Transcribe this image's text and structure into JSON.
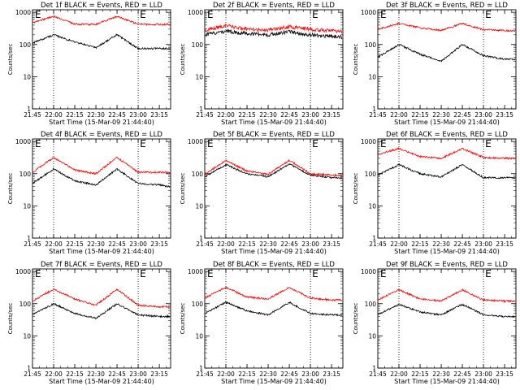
{
  "chart_data": [
    {
      "type": "line",
      "title": "Det 1f BLACK = Events, RED = LLD",
      "xlabel": "Start Time (15-Mar-09 21:44:40)",
      "ylabel": "Counts/sec",
      "yscale": "log",
      "ylim": [
        1,
        1200
      ],
      "xlim": [
        "21:45",
        "23:23"
      ],
      "x_ticks": [
        "21:45",
        "22:00",
        "22:15",
        "22:30",
        "22:45",
        "23:00",
        "23:15"
      ],
      "y_ticks": [
        "1",
        "10",
        "100",
        "1000"
      ],
      "event_markers": [
        "E",
        "E"
      ],
      "vlines": [
        "22:00",
        "23:00"
      ],
      "series": [
        {
          "name": "BLACK = Events",
          "color": "#000000",
          "x": [
            "21:45",
            "22:00",
            "22:15",
            "22:30",
            "22:45",
            "23:00",
            "23:15",
            "23:22"
          ],
          "y": [
            110,
            200,
            120,
            80,
            200,
            75,
            75,
            75
          ]
        },
        {
          "name": "RED = LLD",
          "color": "#ff0000",
          "x": [
            "21:45",
            "22:00",
            "22:15",
            "22:30",
            "22:45",
            "23:00",
            "23:15",
            "23:22"
          ],
          "y": [
            480,
            750,
            430,
            420,
            750,
            420,
            420,
            420
          ]
        }
      ]
    },
    {
      "type": "line",
      "title": "Det 2f BLACK = Events, RED = LLD",
      "xlabel": "Start Time (15-Mar-09 21:44:40)",
      "ylabel": "Counts/sec",
      "yscale": "log",
      "ylim": [
        1,
        1200
      ],
      "xlim": [
        "21:45",
        "23:23"
      ],
      "x_ticks": [
        "21:45",
        "22:00",
        "22:15",
        "22:30",
        "22:45",
        "23:00",
        "23:15"
      ],
      "y_ticks": [
        "1",
        "10",
        "100",
        "1000"
      ],
      "event_markers": [
        "E",
        "E"
      ],
      "vlines": [
        "22:00",
        "23:00"
      ],
      "series": [
        {
          "name": "BLACK = Events",
          "color": "#000000",
          "x": [
            "21:45",
            "22:00",
            "22:15",
            "22:30",
            "22:45",
            "23:00",
            "23:15",
            "23:22"
          ],
          "y": [
            200,
            260,
            220,
            200,
            250,
            200,
            180,
            170
          ]
        },
        {
          "name": "RED = LLD",
          "color": "#ff0000",
          "x": [
            "21:45",
            "22:00",
            "22:15",
            "22:30",
            "22:45",
            "23:00",
            "23:15",
            "23:22"
          ],
          "y": [
            280,
            380,
            300,
            280,
            360,
            290,
            270,
            260
          ]
        }
      ]
    },
    {
      "type": "line",
      "title": "Det 3f BLACK = Events, RED = LLD",
      "xlabel": "Start Time (15-Mar-09 21:44:40)",
      "ylabel": "Counts/sec",
      "yscale": "log",
      "ylim": [
        1,
        1200
      ],
      "xlim": [
        "21:45",
        "23:23"
      ],
      "x_ticks": [
        "21:45",
        "22:00",
        "22:15",
        "22:30",
        "22:45",
        "23:00",
        "23:15"
      ],
      "y_ticks": [
        "1",
        "10",
        "100",
        "1000"
      ],
      "event_markers": [
        "E",
        "E"
      ],
      "vlines": [
        "22:00",
        "23:00"
      ],
      "series": [
        {
          "name": "BLACK = Events",
          "color": "#000000",
          "x": [
            "21:45",
            "22:00",
            "22:15",
            "22:30",
            "22:45",
            "23:00",
            "23:15",
            "23:22"
          ],
          "y": [
            40,
            100,
            50,
            30,
            100,
            45,
            35,
            35
          ]
        },
        {
          "name": "RED = LLD",
          "color": "#ff0000",
          "x": [
            "21:45",
            "22:00",
            "22:15",
            "22:30",
            "22:45",
            "23:00",
            "23:15",
            "23:22"
          ],
          "y": [
            300,
            450,
            330,
            270,
            450,
            290,
            270,
            270
          ]
        }
      ]
    },
    {
      "type": "line",
      "title": "Det 4f BLACK = Events, RED = LLD",
      "xlabel": "Start Time (15-Mar-09 21:44:40)",
      "ylabel": "Counts/sec",
      "yscale": "log",
      "ylim": [
        1,
        1200
      ],
      "xlim": [
        "21:45",
        "23:23"
      ],
      "x_ticks": [
        "21:45",
        "22:00",
        "22:15",
        "22:30",
        "22:45",
        "23:00",
        "23:15"
      ],
      "y_ticks": [
        "1",
        "10",
        "100",
        "1000"
      ],
      "event_markers": [
        "E",
        "E"
      ],
      "vlines": [
        "22:00",
        "23:00"
      ],
      "series": [
        {
          "name": "BLACK = Events",
          "color": "#000000",
          "x": [
            "21:45",
            "22:00",
            "22:15",
            "22:30",
            "22:45",
            "23:00",
            "23:15",
            "23:22"
          ],
          "y": [
            50,
            140,
            60,
            45,
            140,
            50,
            45,
            40
          ]
        },
        {
          "name": "RED = LLD",
          "color": "#ff0000",
          "x": [
            "21:45",
            "22:00",
            "22:15",
            "22:30",
            "22:45",
            "23:00",
            "23:15",
            "23:22"
          ],
          "y": [
            110,
            320,
            130,
            100,
            320,
            110,
            110,
            110
          ]
        }
      ]
    },
    {
      "type": "line",
      "title": "Det 5f BLACK = Events, RED = LLD",
      "xlabel": "Start Time (15-Mar-09 21:44:40)",
      "ylabel": "Counts/sec",
      "yscale": "log",
      "ylim": [
        1,
        1200
      ],
      "xlim": [
        "21:45",
        "23:23"
      ],
      "x_ticks": [
        "21:45",
        "22:00",
        "22:15",
        "22:30",
        "22:45",
        "23:00",
        "23:15"
      ],
      "y_ticks": [
        "1",
        "10",
        "100",
        "1000"
      ],
      "event_markers": [
        "E",
        "E"
      ],
      "vlines": [
        "22:00",
        "23:00"
      ],
      "series": [
        {
          "name": "BLACK = Events",
          "color": "#000000",
          "x": [
            "21:45",
            "22:00",
            "22:15",
            "22:30",
            "22:45",
            "23:00",
            "23:15",
            "23:22"
          ],
          "y": [
            80,
            190,
            100,
            80,
            200,
            90,
            75,
            75
          ]
        },
        {
          "name": "RED = LLD",
          "color": "#ff0000",
          "x": [
            "21:45",
            "22:00",
            "22:15",
            "22:30",
            "22:45",
            "23:00",
            "23:15",
            "23:22"
          ],
          "y": [
            95,
            260,
            120,
            95,
            260,
            100,
            90,
            90
          ]
        }
      ]
    },
    {
      "type": "line",
      "title": "Det 6f BLACK = Events, RED = LLD",
      "xlabel": "Start Time (15-Mar-09 21:44:40)",
      "ylabel": "Counts/sec",
      "yscale": "log",
      "ylim": [
        1,
        1200
      ],
      "xlim": [
        "21:45",
        "23:23"
      ],
      "x_ticks": [
        "21:45",
        "22:00",
        "22:15",
        "22:30",
        "22:45",
        "23:00",
        "23:15"
      ],
      "y_ticks": [
        "1",
        "10",
        "100",
        "1000"
      ],
      "event_markers": [
        "E",
        "E"
      ],
      "vlines": [
        "22:00",
        "23:00"
      ],
      "series": [
        {
          "name": "BLACK = Events",
          "color": "#000000",
          "x": [
            "21:45",
            "22:00",
            "22:15",
            "22:30",
            "22:45",
            "23:00",
            "23:15",
            "23:22"
          ],
          "y": [
            90,
            190,
            100,
            80,
            190,
            75,
            75,
            75
          ]
        },
        {
          "name": "RED = LLD",
          "color": "#ff0000",
          "x": [
            "21:45",
            "22:00",
            "22:15",
            "22:30",
            "22:45",
            "23:00",
            "23:15",
            "23:22"
          ],
          "y": [
            400,
            600,
            340,
            300,
            600,
            320,
            300,
            300
          ]
        }
      ]
    },
    {
      "type": "line",
      "title": "Det 7f BLACK = Events, RED = LLD",
      "xlabel": "Start Time (15-Mar-09 21:44:40)",
      "ylabel": "Counts/sec",
      "yscale": "log",
      "ylim": [
        1,
        1200
      ],
      "xlim": [
        "21:45",
        "23:23"
      ],
      "x_ticks": [
        "21:45",
        "22:00",
        "22:15",
        "22:30",
        "22:45",
        "23:00",
        "23:15"
      ],
      "y_ticks": [
        "1",
        "10",
        "100",
        "1000"
      ],
      "event_markers": [
        "E",
        "E"
      ],
      "vlines": [
        "22:00",
        "23:00"
      ],
      "series": [
        {
          "name": "BLACK = Events",
          "color": "#000000",
          "x": [
            "21:45",
            "22:00",
            "22:15",
            "22:30",
            "22:45",
            "23:00",
            "23:15",
            "23:22"
          ],
          "y": [
            45,
            100,
            50,
            35,
            100,
            45,
            40,
            40
          ]
        },
        {
          "name": "RED = LLD",
          "color": "#ff0000",
          "x": [
            "21:45",
            "22:00",
            "22:15",
            "22:30",
            "22:45",
            "23:00",
            "23:15",
            "23:22"
          ],
          "y": [
            120,
            280,
            140,
            90,
            280,
            90,
            80,
            80
          ]
        }
      ]
    },
    {
      "type": "line",
      "title": "Det 8f BLACK = Events, RED = LLD",
      "xlabel": "Start Time (15-Mar-09 21:44:40)",
      "ylabel": "Counts/sec",
      "yscale": "log",
      "ylim": [
        1,
        1200
      ],
      "xlim": [
        "21:45",
        "23:23"
      ],
      "x_ticks": [
        "21:45",
        "22:00",
        "22:15",
        "22:30",
        "22:45",
        "23:00",
        "23:15"
      ],
      "y_ticks": [
        "1",
        "10",
        "100",
        "1000"
      ],
      "event_markers": [
        "E",
        "E"
      ],
      "vlines": [
        "22:00",
        "23:00"
      ],
      "series": [
        {
          "name": "BLACK = Events",
          "color": "#000000",
          "x": [
            "21:45",
            "22:00",
            "22:15",
            "22:30",
            "22:45",
            "23:00",
            "23:15",
            "23:22"
          ],
          "y": [
            50,
            110,
            60,
            45,
            110,
            50,
            45,
            45
          ]
        },
        {
          "name": "RED = LLD",
          "color": "#ff0000",
          "x": [
            "21:45",
            "22:00",
            "22:15",
            "22:30",
            "22:45",
            "23:00",
            "23:15",
            "23:22"
          ],
          "y": [
            150,
            320,
            160,
            140,
            320,
            150,
            130,
            130
          ]
        }
      ]
    },
    {
      "type": "line",
      "title": "Det 9f BLACK = Events, RED = LLD",
      "xlabel": "Start Time (15-Mar-09 21:44:40)",
      "ylabel": "Counts/sec",
      "yscale": "log",
      "ylim": [
        1,
        1200
      ],
      "xlim": [
        "21:45",
        "23:23"
      ],
      "x_ticks": [
        "21:45",
        "22:00",
        "22:15",
        "22:30",
        "22:45",
        "23:00",
        "23:15"
      ],
      "y_ticks": [
        "1",
        "10",
        "100",
        "1000"
      ],
      "event_markers": [
        "E",
        "E"
      ],
      "vlines": [
        "22:00",
        "23:00"
      ],
      "series": [
        {
          "name": "BLACK = Events",
          "color": "#000000",
          "x": [
            "21:45",
            "22:00",
            "22:15",
            "22:30",
            "22:45",
            "23:00",
            "23:15",
            "23:22"
          ],
          "y": [
            45,
            95,
            55,
            45,
            95,
            45,
            40,
            40
          ]
        },
        {
          "name": "RED = LLD",
          "color": "#ff0000",
          "x": [
            "21:45",
            "22:00",
            "22:15",
            "22:30",
            "22:45",
            "23:00",
            "23:15",
            "23:22"
          ],
          "y": [
            130,
            270,
            140,
            120,
            270,
            130,
            120,
            120
          ]
        }
      ]
    }
  ]
}
